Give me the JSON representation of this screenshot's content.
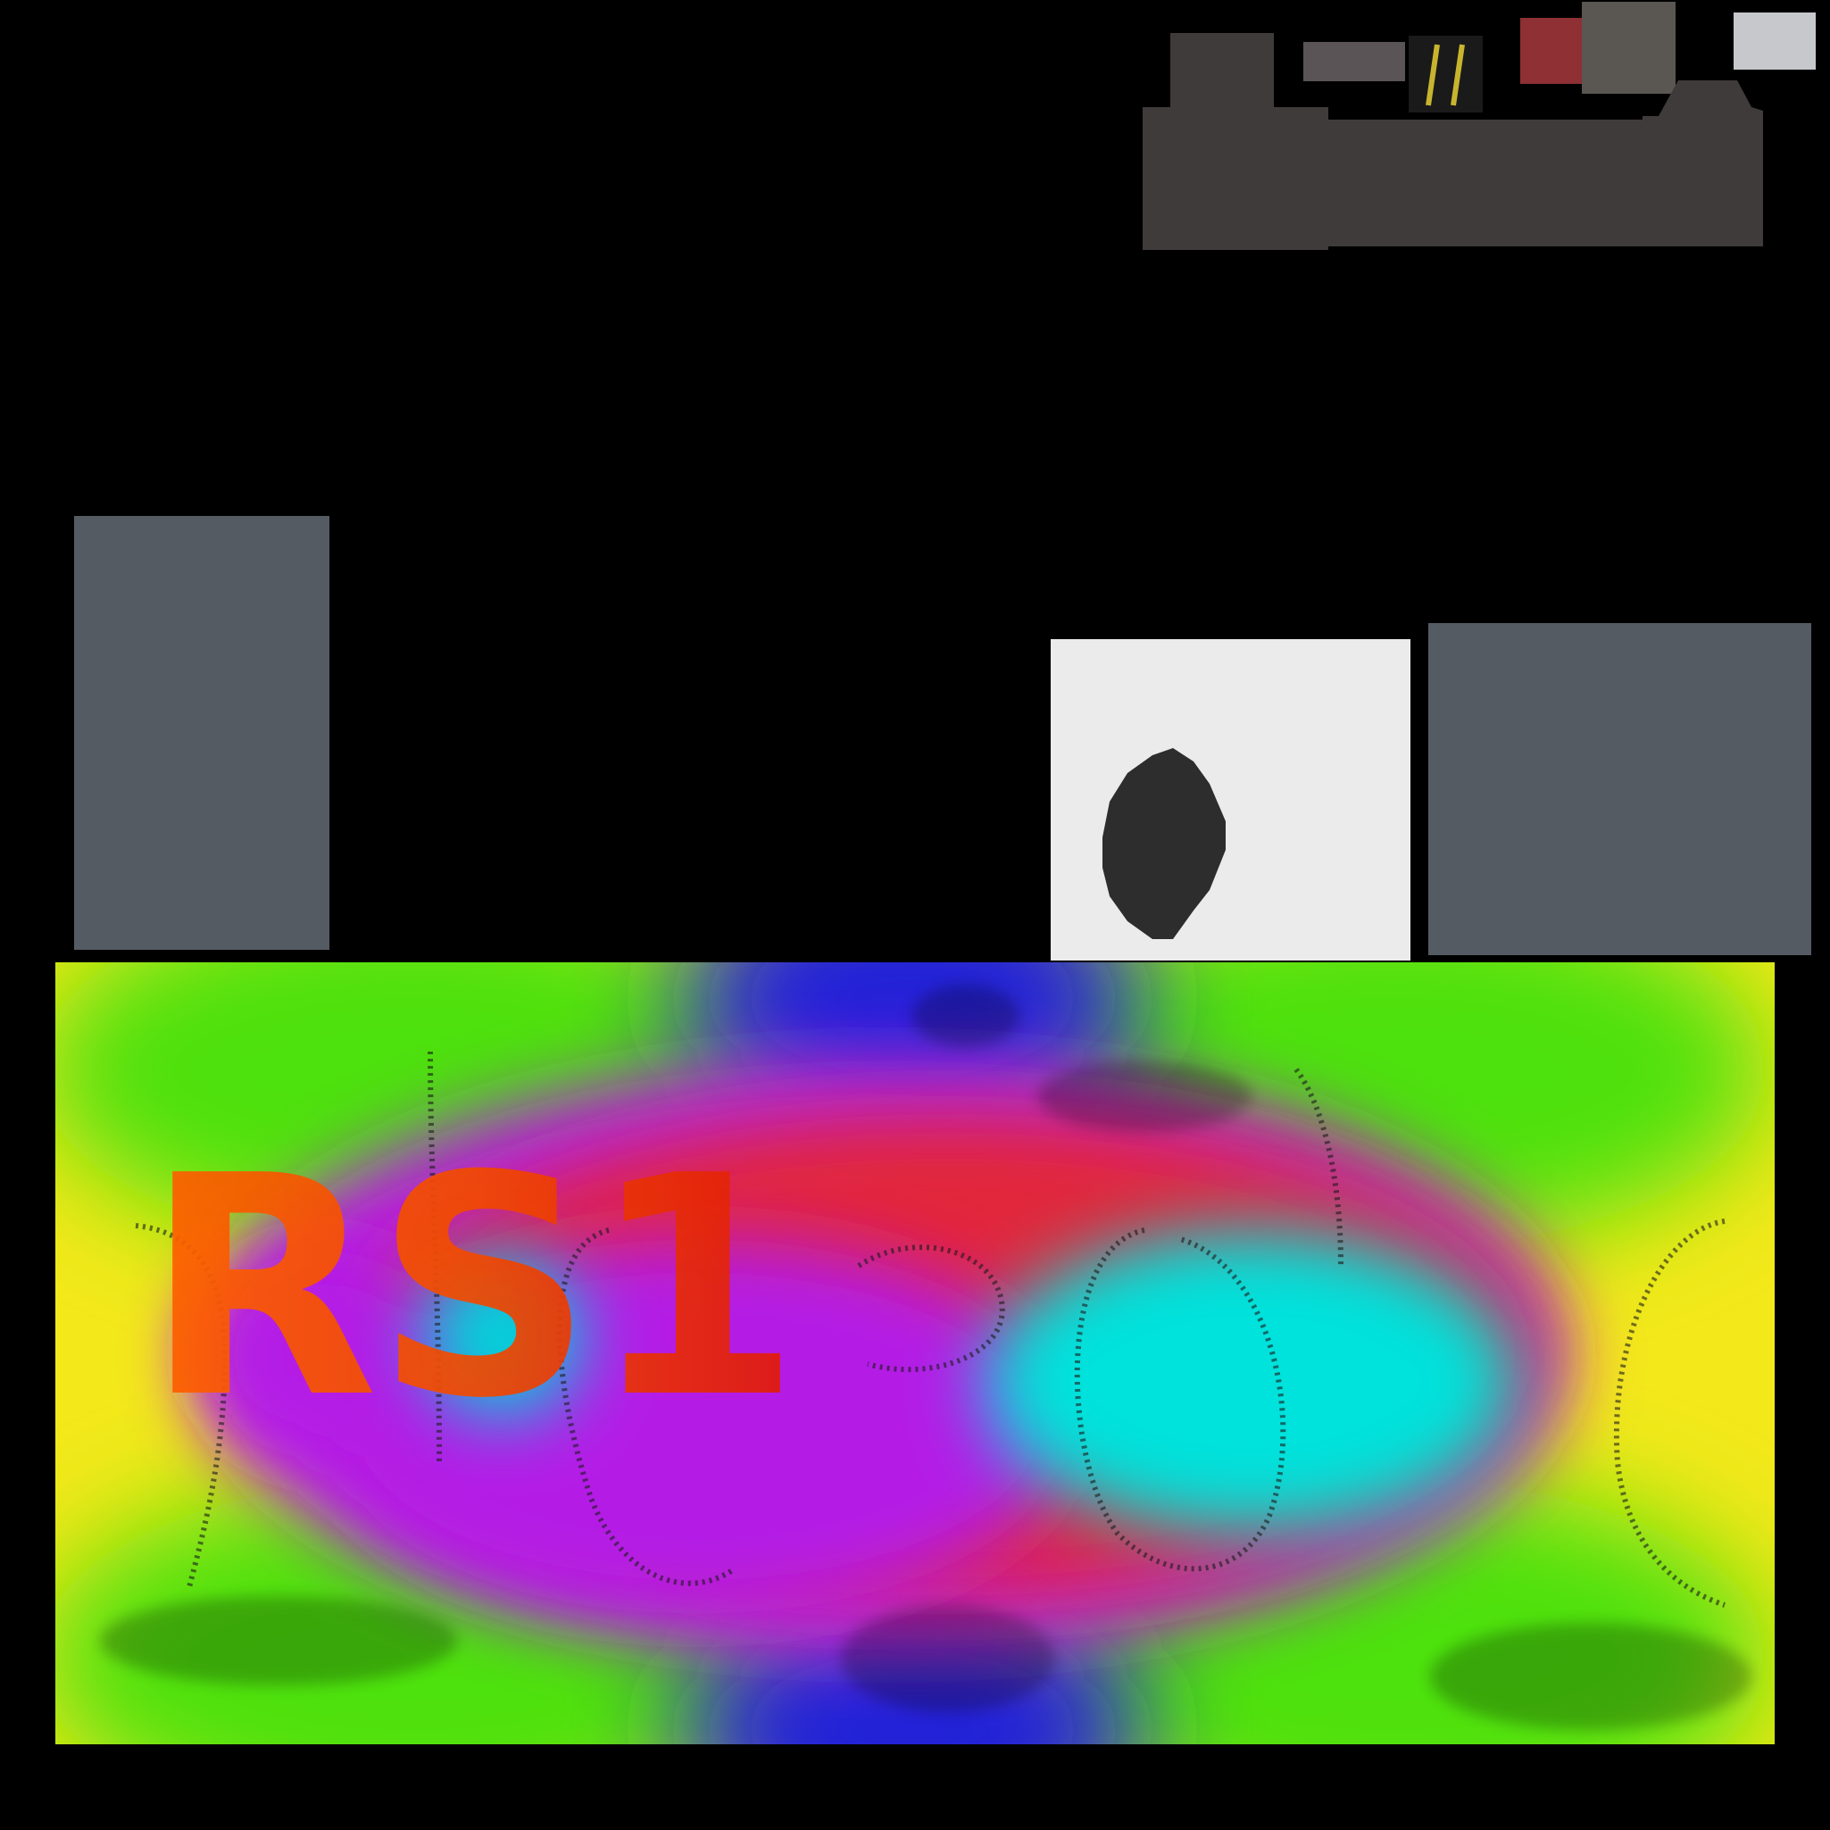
{
  "texture_atlas": {
    "background_color": "#000000",
    "top_pieces": [
      {
        "name": "roof-piece",
        "color": "#3f3b3b"
      },
      {
        "name": "strip-piece",
        "color": "#5a5456"
      },
      {
        "name": "stripe-decal",
        "color": "#1a1a1a",
        "stripe_color": "#c8b52e"
      },
      {
        "name": "red-swatch",
        "color": "#8e3034"
      },
      {
        "name": "grey-swatch",
        "color": "#5a5652"
      },
      {
        "name": "light-swatch",
        "color": "#c6c8cc"
      }
    ],
    "panels": {
      "left_color": "#555b63",
      "right_color": "#555b63"
    },
    "oval_tile": {
      "background": "#ebebeb",
      "oval_color": "#2d2d2d"
    },
    "livery": {
      "text": "RS1",
      "gradient_colors": [
        "#f3e81a",
        "#4de10e",
        "#2222d8",
        "#b41ee6",
        "#e2283a",
        "#00e2dc"
      ]
    }
  }
}
